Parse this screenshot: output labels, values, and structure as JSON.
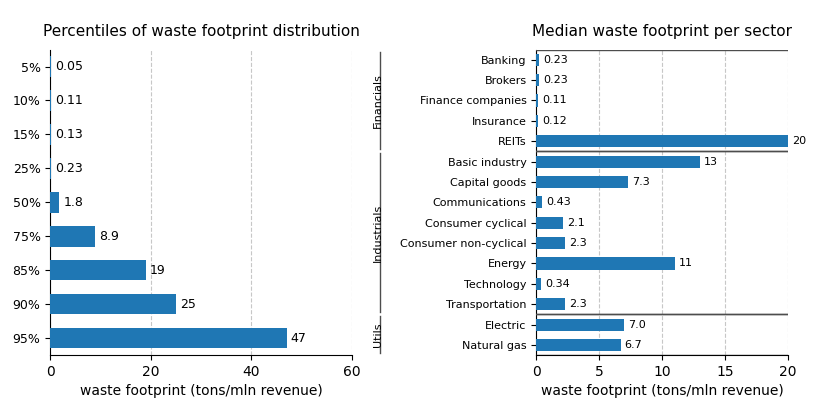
{
  "chart_data": [
    {
      "type": "bar",
      "orientation": "horizontal",
      "title": "Percentiles of waste footprint distribution",
      "categories": [
        "5%",
        "10%",
        "15%",
        "25%",
        "50%",
        "75%",
        "85%",
        "90%",
        "95%"
      ],
      "values": [
        0.05,
        0.11,
        0.13,
        0.23,
        1.8,
        8.9,
        19,
        25,
        47
      ],
      "value_labels": [
        "0.05",
        "0.11",
        "0.13",
        "0.23",
        "1.8",
        "8.9",
        "19",
        "25",
        "47"
      ],
      "xlabel": "waste footprint (tons/mln revenue)",
      "xlim": [
        0,
        60
      ],
      "xticks": [
        0,
        20,
        40,
        60
      ],
      "grid": true,
      "data_labels": true
    },
    {
      "type": "bar",
      "orientation": "horizontal",
      "title": "Median waste footprint per sector",
      "categories": [
        "Banking",
        "Brokers",
        "Finance companies",
        "Insurance",
        "REITs",
        "Basic industry",
        "Capital goods",
        "Communications",
        "Consumer cyclical",
        "Consumer non-cyclical",
        "Energy",
        "Technology",
        "Transportation",
        "Electric",
        "Natural gas"
      ],
      "values": [
        0.23,
        0.23,
        0.11,
        0.12,
        20,
        13,
        7.3,
        0.43,
        2.1,
        2.3,
        11,
        0.34,
        2.3,
        7.0,
        6.7
      ],
      "value_labels": [
        "0.23",
        "0.23",
        "0.11",
        "0.12",
        "20",
        "13",
        "7.3",
        "0.43",
        "2.1",
        "2.3",
        "11",
        "0.34",
        "2.3",
        "7.0",
        "6.7"
      ],
      "groups": [
        {
          "name": "Financials",
          "size": 5
        },
        {
          "name": "Industrials",
          "size": 8
        },
        {
          "name": "Utils",
          "size": 2
        }
      ],
      "xlabel": "waste footprint (tons/mln revenue)",
      "xlim": [
        0,
        20
      ],
      "xticks": [
        0,
        5,
        10,
        15,
        20
      ],
      "grid": true,
      "data_labels": true
    }
  ]
}
